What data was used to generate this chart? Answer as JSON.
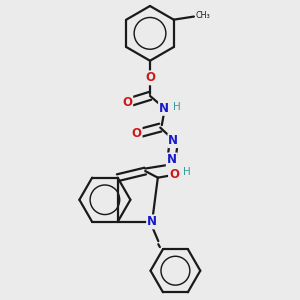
{
  "background_color": "#ebebeb",
  "bond_color": "#1a1a1a",
  "nitrogen_color": "#1a1acc",
  "oxygen_color": "#cc1a1a",
  "hydrogen_color": "#3a9a9a",
  "figsize": [
    3.0,
    3.0
  ],
  "dpi": 100,
  "xlim": [
    0.1,
    0.9
  ],
  "ylim": [
    0.02,
    0.98
  ]
}
